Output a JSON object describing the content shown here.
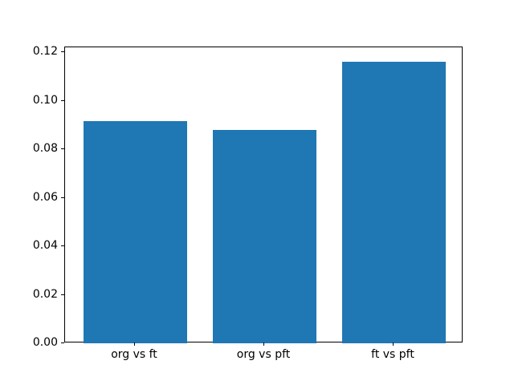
{
  "chart_data": {
    "type": "bar",
    "title": "",
    "xlabel": "",
    "ylabel": "",
    "categories": [
      "org vs ft",
      "org vs pft",
      "ft vs pft"
    ],
    "values": [
      0.0916,
      0.0879,
      0.1162
    ],
    "yticks": [
      "0.00",
      "0.02",
      "0.04",
      "0.06",
      "0.08",
      "0.10",
      "0.12"
    ],
    "ylim": [
      0,
      0.122
    ],
    "bar_color": "#1f77b4",
    "grid": "off",
    "legend": "none",
    "background_color": "#ffffff",
    "spine_color": "#000000"
  }
}
